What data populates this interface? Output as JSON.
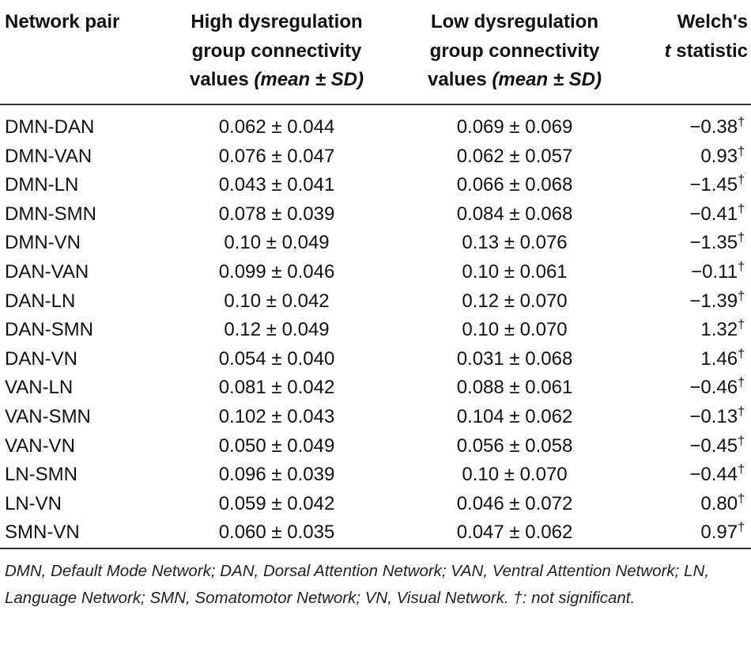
{
  "table": {
    "headers": {
      "pair": "Network pair",
      "high_line1": "High dysregulation",
      "high_line2": "group connectivity",
      "high_line3_plain": "values ",
      "high_line3_italic": "(mean ± SD)",
      "low_line1": "Low dysregulation",
      "low_line2": "group connectivity",
      "low_line3_plain": "values ",
      "low_line3_italic": "(mean ± SD)",
      "welch_line1": "Welch's",
      "welch_line2_italic": "t",
      "welch_line2_plain": " statistic"
    },
    "rows": [
      {
        "pair": "DMN-DAN",
        "high": "0.062 ± 0.044",
        "low": "0.069 ± 0.069",
        "t": "−0.38",
        "mark": "†"
      },
      {
        "pair": "DMN-VAN",
        "high": "0.076 ± 0.047",
        "low": "0.062 ± 0.057",
        "t": "0.93",
        "mark": "†"
      },
      {
        "pair": "DMN-LN",
        "high": "0.043 ± 0.041",
        "low": "0.066 ± 0.068",
        "t": "−1.45",
        "mark": "†"
      },
      {
        "pair": "DMN-SMN",
        "high": "0.078 ± 0.039",
        "low": "0.084 ± 0.068",
        "t": "−0.41",
        "mark": "†"
      },
      {
        "pair": "DMN-VN",
        "high": "0.10 ± 0.049",
        "low": "0.13 ± 0.076",
        "t": "−1.35",
        "mark": "†"
      },
      {
        "pair": "DAN-VAN",
        "high": "0.099 ± 0.046",
        "low": "0.10 ± 0.061",
        "t": "−0.11",
        "mark": "†"
      },
      {
        "pair": "DAN-LN",
        "high": "0.10 ± 0.042",
        "low": "0.12 ± 0.070",
        "t": "−1.39",
        "mark": "†"
      },
      {
        "pair": "DAN-SMN",
        "high": "0.12 ± 0.049",
        "low": "0.10 ± 0.070",
        "t": "1.32",
        "mark": "†"
      },
      {
        "pair": "DAN-VN",
        "high": "0.054 ± 0.040",
        "low": "0.031 ± 0.068",
        "t": "1.46",
        "mark": "†"
      },
      {
        "pair": "VAN-LN",
        "high": "0.081 ± 0.042",
        "low": "0.088 ± 0.061",
        "t": "−0.46",
        "mark": "†"
      },
      {
        "pair": "VAN-SMN",
        "high": "0.102 ± 0.043",
        "low": "0.104 ± 0.062",
        "t": "−0.13",
        "mark": "†"
      },
      {
        "pair": "VAN-VN",
        "high": "0.050 ± 0.049",
        "low": "0.056 ± 0.058",
        "t": "−0.45",
        "mark": "†"
      },
      {
        "pair": "LN-SMN",
        "high": "0.096 ± 0.039",
        "low": "0.10 ± 0.070",
        "t": "−0.44",
        "mark": "†"
      },
      {
        "pair": "LN-VN",
        "high": "0.059 ± 0.042",
        "low": "0.046 ± 0.072",
        "t": "0.80",
        "mark": "†"
      },
      {
        "pair": "SMN-VN",
        "high": "0.060 ± 0.035",
        "low": "0.047 ± 0.062",
        "t": "0.97",
        "mark": "†"
      }
    ],
    "footnote": "DMN, Default Mode Network; DAN, Dorsal Attention Network; VAN, Ventral Attention Network; LN, Language Network; SMN, Somatomotor Network; VN, Visual Network. †: not significant."
  }
}
